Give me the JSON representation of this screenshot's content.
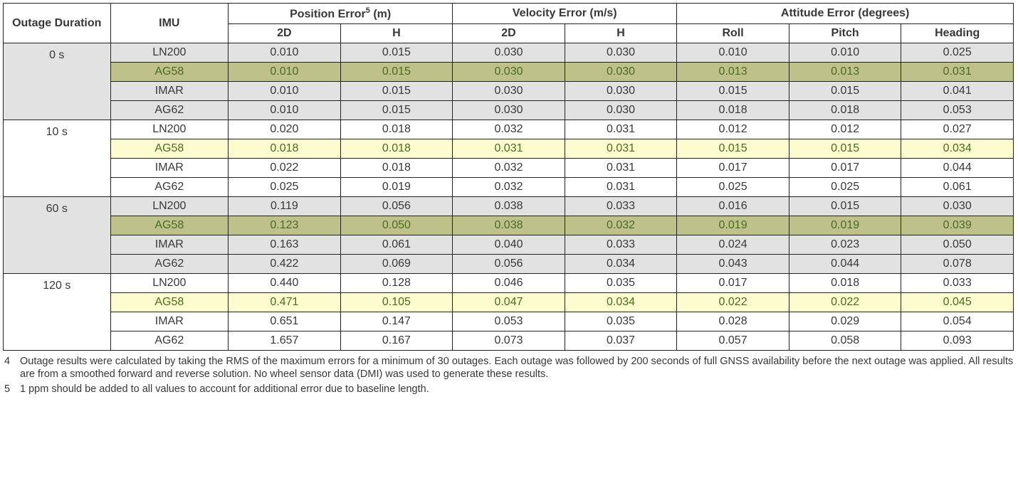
{
  "headers": {
    "outage": "Outage Duration",
    "imu": "IMU",
    "pos_group": "Position Error",
    "pos_sup": "5",
    "pos_unit": " (m)",
    "vel_group": "Velocity Error (m/s)",
    "att_group": "Attitude Error (degrees)",
    "sub": {
      "d2a": "2D",
      "h1": "H",
      "d2b": "2D",
      "h2": "H",
      "roll": "Roll",
      "pitch": "Pitch",
      "heading": "Heading"
    }
  },
  "durations": [
    "0 s",
    "10 s",
    "60 s",
    "120 s"
  ],
  "imus": [
    "LN200",
    "AG58",
    "IMAR",
    "AG62"
  ],
  "rows": [
    {
      "v": [
        "0.010",
        "0.015",
        "0.030",
        "0.030",
        "0.010",
        "0.010",
        "0.025"
      ]
    },
    {
      "v": [
        "0.010",
        "0.015",
        "0.030",
        "0.030",
        "0.013",
        "0.013",
        "0.031"
      ]
    },
    {
      "v": [
        "0.010",
        "0.015",
        "0.030",
        "0.030",
        "0.015",
        "0.015",
        "0.041"
      ]
    },
    {
      "v": [
        "0.010",
        "0.015",
        "0.030",
        "0.030",
        "0.018",
        "0.018",
        "0.053"
      ]
    },
    {
      "v": [
        "0.020",
        "0.018",
        "0.032",
        "0.031",
        "0.012",
        "0.012",
        "0.027"
      ]
    },
    {
      "v": [
        "0.018",
        "0.018",
        "0.031",
        "0.031",
        "0.015",
        "0.015",
        "0.034"
      ]
    },
    {
      "v": [
        "0.022",
        "0.018",
        "0.032",
        "0.031",
        "0.017",
        "0.017",
        "0.044"
      ]
    },
    {
      "v": [
        "0.025",
        "0.019",
        "0.032",
        "0.031",
        "0.025",
        "0.025",
        "0.061"
      ]
    },
    {
      "v": [
        "0.119",
        "0.056",
        "0.038",
        "0.033",
        "0.016",
        "0.015",
        "0.030"
      ]
    },
    {
      "v": [
        "0.123",
        "0.050",
        "0.038",
        "0.032",
        "0.019",
        "0.019",
        "0.039"
      ]
    },
    {
      "v": [
        "0.163",
        "0.061",
        "0.040",
        "0.033",
        "0.024",
        "0.023",
        "0.050"
      ]
    },
    {
      "v": [
        "0.422",
        "0.069",
        "0.056",
        "0.034",
        "0.043",
        "0.044",
        "0.078"
      ]
    },
    {
      "v": [
        "0.440",
        "0.128",
        "0.046",
        "0.035",
        "0.017",
        "0.018",
        "0.033"
      ]
    },
    {
      "v": [
        "0.471",
        "0.105",
        "0.047",
        "0.034",
        "0.022",
        "0.022",
        "0.045"
      ]
    },
    {
      "v": [
        "0.651",
        "0.147",
        "0.053",
        "0.035",
        "0.028",
        "0.029",
        "0.054"
      ]
    },
    {
      "v": [
        "1.657",
        "0.167",
        "0.073",
        "0.037",
        "0.057",
        "0.058",
        "0.093"
      ]
    }
  ],
  "block_shaded": [
    true,
    false,
    true,
    false
  ],
  "row_highlight": [
    "",
    "olive",
    "",
    "",
    "",
    "yellow",
    "",
    "",
    "",
    "olive",
    "",
    "",
    "",
    "yellow",
    "",
    ""
  ],
  "footnotes": {
    "n4": "4",
    "t4": "Outage results were calculated by taking the RMS of the maximum errors for a minimum of 30 outages. Each outage was followed by 200 seconds of full GNSS availability before the next outage was applied. All results are from a smoothed forward and reverse solution. No wheel sensor data (DMI) was used to generate these results.",
    "n5": "5",
    "t5": "1 ppm should be added to all values to account for additional error due to baseline length."
  }
}
